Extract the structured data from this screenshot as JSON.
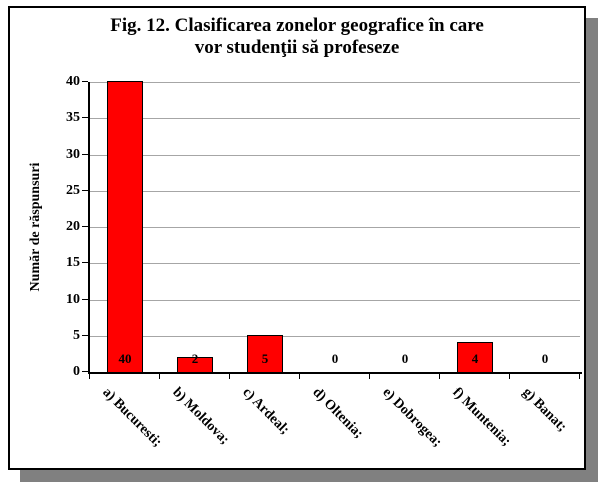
{
  "figure": {
    "background": "#FFFFFF",
    "border_color": "#000000",
    "shadow_color": "#808080"
  },
  "chart_data": {
    "type": "bar",
    "title": "Fig. 12. Clasificarea zonelor geografice în care vor studenţii să profeseze",
    "title_line1": "Fig. 12. Clasificarea zonelor geografice în care",
    "title_line2": "vor studenţii să profeseze",
    "xlabel": "",
    "ylabel": "Număr de răspunsuri",
    "categories": [
      "a) Bucuresti;",
      "b) Moldova;",
      "c) Ardeal;",
      "d) Oltenia;",
      "e) Dobrogea;",
      "f) Muntenia;",
      "g) Banat;"
    ],
    "values": [
      40,
      2,
      5,
      0,
      0,
      4,
      0
    ],
    "data_labels": [
      "40",
      "2",
      "5",
      "0",
      "0",
      "4",
      "0"
    ],
    "ylim": [
      0,
      40
    ],
    "ytick_interval": 5,
    "yticks": [
      0,
      5,
      10,
      15,
      20,
      25,
      30,
      35,
      40
    ],
    "bar_color": "#FF0000",
    "bar_border_color": "#000000",
    "gridline_color": "#A6A6A6",
    "grid": true,
    "legend": "none"
  }
}
